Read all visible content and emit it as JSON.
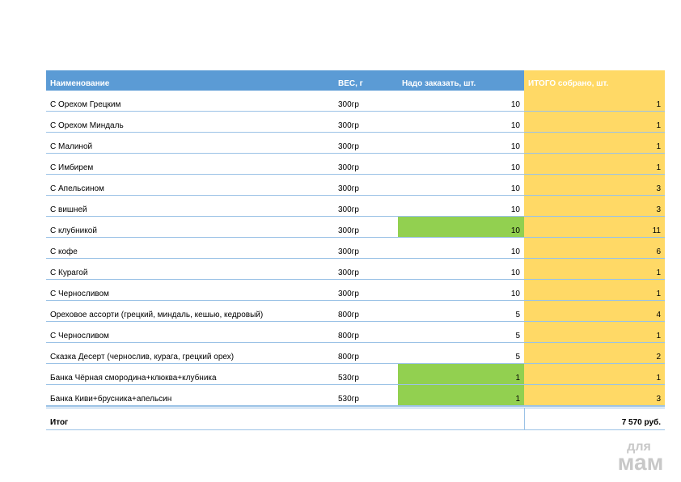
{
  "table": {
    "header": [
      "Наименование",
      "ВЕС, г",
      "Надо заказать, шт.",
      "ИТОГО собрано, шт."
    ],
    "rows": [
      [
        "С Орехом Грецким",
        "300гр",
        10,
        1
      ],
      [
        "С Орехом Миндаль",
        "300гр",
        10,
        1
      ],
      [
        "С Малиной",
        "300гр",
        10,
        1
      ],
      [
        "С Имбирем",
        "300гр",
        10,
        1
      ],
      [
        "С Апельсином",
        "300гр",
        10,
        3
      ],
      [
        "С вишней",
        "300гр",
        10,
        3
      ],
      [
        "С клубникой",
        "300гр",
        10,
        11
      ],
      [
        "С кофе",
        "300гр",
        10,
        6
      ],
      [
        "С Курагой",
        "300гр",
        10,
        1
      ],
      [
        "С Черносливом",
        "300гр",
        10,
        1
      ],
      [
        "Ореховое ассорти (грецкий, миндаль, кешью, кедровый)",
        "800гр",
        5,
        4
      ],
      [
        "С Черносливом",
        "800гр",
        5,
        1
      ],
      [
        "Сказка Десерт (чернослив, курага, грецкий орех)",
        "800гр",
        5,
        2
      ],
      [
        "Банка Чёрная смородина+клюква+клубника",
        "530гр",
        1,
        1
      ],
      [
        "Банка Киви+брусника+апельсин",
        "530гр",
        1,
        3
      ]
    ],
    "highlighted_rows": [
      6,
      13,
      14
    ],
    "highlight_color": "#92d050",
    "total_label": "Итог",
    "total_value": "7 570 руб."
  },
  "watermark": [
    "для",
    "мам"
  ]
}
